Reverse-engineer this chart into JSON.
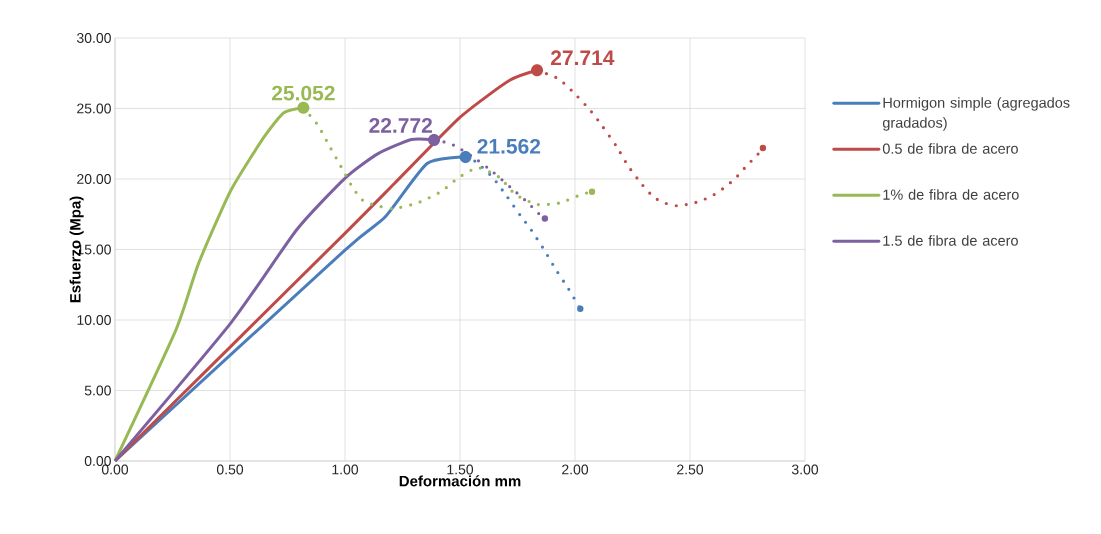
{
  "chart_data": {
    "type": "line",
    "xlabel": "Deformación mm",
    "ylabel": "Esfuerzo (Mpa)",
    "xlim": [
      0,
      3
    ],
    "ylim": [
      0,
      30
    ],
    "xticks": [
      {
        "value": 0,
        "label": "0.00"
      },
      {
        "value": 0.5,
        "label": "0.50"
      },
      {
        "value": 1,
        "label": "1.00"
      },
      {
        "value": 1.5,
        "label": "1.50"
      },
      {
        "value": 2,
        "label": "2.00"
      },
      {
        "value": 2.5,
        "label": "2.50"
      },
      {
        "value": 3,
        "label": "3.00"
      }
    ],
    "yticks": [
      {
        "value": 0,
        "label": "0.00"
      },
      {
        "value": 5,
        "label": "5.00"
      },
      {
        "value": 10,
        "label": "10.00"
      },
      {
        "value": 15,
        "label": "15.00"
      },
      {
        "value": 20,
        "label": "20.00"
      },
      {
        "value": 25,
        "label": "25.00"
      },
      {
        "value": 30,
        "label": "30.00"
      }
    ],
    "grid": true,
    "legend": "right",
    "series": [
      {
        "name": "Hormigon simple (agregados gradados)",
        "color": "#4a7ebb",
        "line_style": "solid",
        "x": [
          0,
          1.0,
          1.174,
          1.357,
          1.524
        ],
        "values": [
          0,
          14.96,
          17.3,
          21.1,
          21.562
        ]
      },
      {
        "name": "0.5 de fibra de acero",
        "color": "#be4b48",
        "line_style": "solid",
        "x": [
          0,
          1.003,
          1.216,
          1.502,
          1.716,
          1.835
        ],
        "values": [
          0,
          16.2,
          19.7,
          24.4,
          27.0,
          27.714
        ]
      },
      {
        "name": "1% de fibra de acero",
        "color": "#98b954",
        "line_style": "solid",
        "x": [
          0,
          0.265,
          0.363,
          0.504,
          0.649,
          0.734,
          0.819
        ],
        "values": [
          0,
          9.3,
          14.0,
          19.2,
          23.0,
          24.7,
          25.052
        ]
      },
      {
        "name": "1.5 de fibra de acero",
        "color": "#7d60a0",
        "line_style": "solid",
        "x": [
          0,
          0.504,
          0.79,
          1.003,
          1.144,
          1.289,
          1.387
        ],
        "values": [
          0,
          9.8,
          16.4,
          20.1,
          21.8,
          22.8,
          22.772
        ]
      },
      {
        "color": "#4a7ebb",
        "line_style": "dotted",
        "x": [
          1.524,
          1.571,
          1.643,
          1.707,
          1.763,
          1.805,
          1.865,
          1.916,
          1.972,
          2.023
        ],
        "values": [
          21.562,
          21.2,
          20.1,
          18.7,
          17.4,
          16.5,
          15.0,
          13.6,
          12.2,
          10.8
        ]
      },
      {
        "color": "#be4b48",
        "line_style": "dotted",
        "x": [
          1.835,
          1.929,
          2.002,
          2.07,
          2.121,
          2.181,
          2.232,
          2.292,
          2.343,
          2.39,
          2.441,
          2.488,
          2.539,
          2.595,
          2.642,
          2.68,
          2.718,
          2.749,
          2.787,
          2.817
        ],
        "values": [
          27.714,
          27.1,
          26.0,
          24.8,
          23.7,
          22.3,
          20.9,
          19.6,
          18.7,
          18.3,
          18.1,
          18.2,
          18.4,
          18.8,
          19.3,
          19.8,
          20.4,
          21.0,
          21.6,
          22.2
        ]
      },
      {
        "color": "#98b954",
        "line_style": "dotted",
        "x": [
          0.819,
          0.883,
          0.93,
          0.982,
          1.033,
          1.076,
          1.118,
          1.208,
          1.315,
          1.417,
          1.494,
          1.579,
          1.673,
          1.741,
          1.835,
          1.933,
          2.027,
          2.074
        ],
        "values": [
          25.052,
          23.8,
          22.4,
          20.9,
          19.4,
          18.5,
          18.2,
          17.9,
          18.3,
          19.1,
          20.1,
          20.8,
          20.1,
          18.9,
          18.2,
          18.3,
          18.9,
          19.1
        ]
      },
      {
        "color": "#7d60a0",
        "line_style": "dotted",
        "x": [
          1.387,
          1.438,
          1.485,
          1.571,
          1.643,
          1.72,
          1.797,
          1.831,
          1.869
        ],
        "values": [
          22.772,
          22.6,
          22.3,
          21.4,
          20.5,
          19.4,
          18.3,
          17.7,
          17.2
        ]
      }
    ],
    "annotations": [
      {
        "text": "21.562",
        "x": 1.524,
        "y": 21.562
      },
      {
        "text": "27.714",
        "x": 1.835,
        "y": 27.714
      },
      {
        "text": "25.052",
        "x": 0.819,
        "y": 25.052
      },
      {
        "text": "22.772",
        "x": 1.387,
        "y": 22.772
      }
    ]
  }
}
